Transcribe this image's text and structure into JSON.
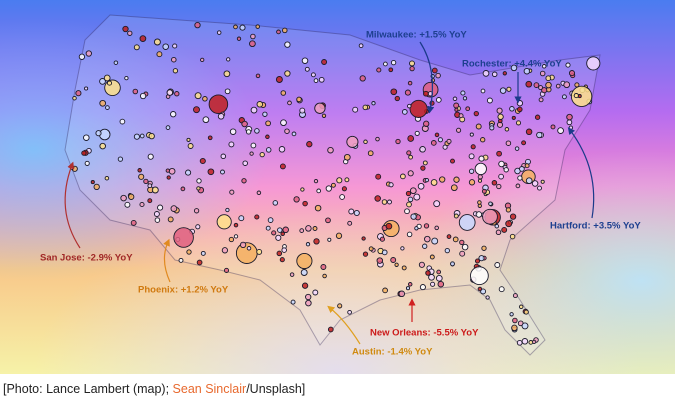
{
  "annotations": [
    {
      "city": "Milwaukee",
      "label": "Milwaukee: +1.5% YoY"
    },
    {
      "city": "Rochester",
      "label": "Rochester: +4.4% YoY"
    },
    {
      "city": "Hartford",
      "label": "Hartford: +3.5% YoY"
    },
    {
      "city": "San Jose",
      "label": "San Jose: -2.9% YoY"
    },
    {
      "city": "Phoenix",
      "label": "Phoenix: +1.2% YoY"
    },
    {
      "city": "New Orleans",
      "label": "New Orleans: -5.5% YoY"
    },
    {
      "city": "Austin",
      "label": "Austin: -1.4% YoY"
    }
  ],
  "caption": {
    "prefix": "[Photo: Lance Lambert (map); ",
    "link": "Sean Sinclair",
    "suffix": "/Unsplash]"
  }
}
